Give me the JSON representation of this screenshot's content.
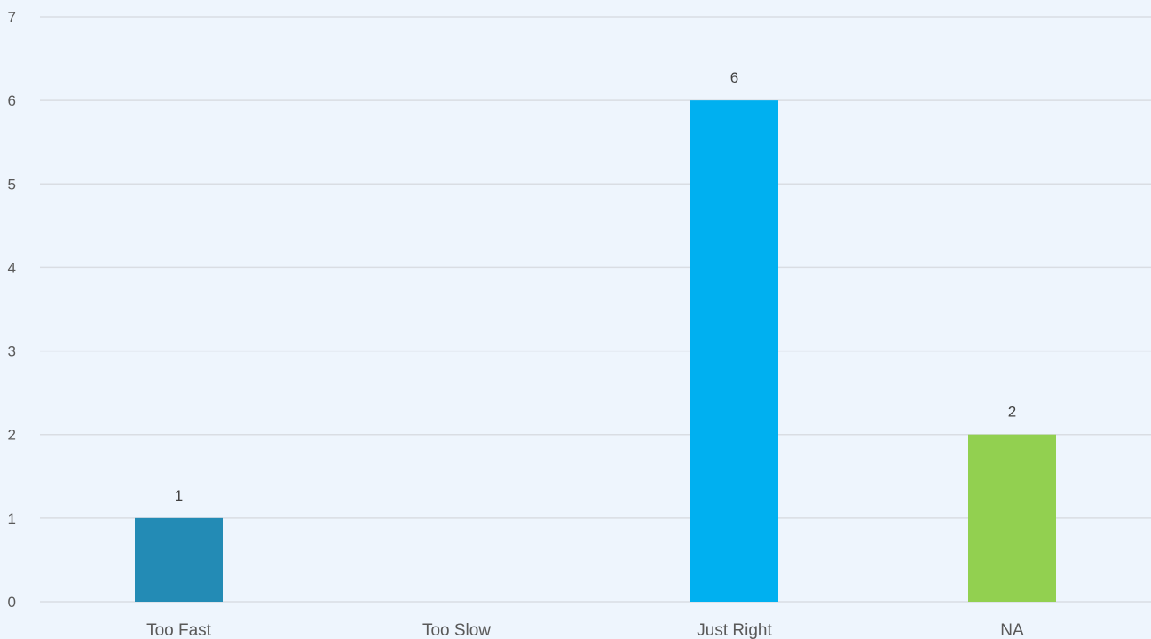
{
  "chart_data": {
    "type": "bar",
    "title": "",
    "xlabel": "",
    "ylabel": "",
    "categories": [
      "Too Fast",
      "Too Slow",
      "Just Right",
      "NA"
    ],
    "series": [
      {
        "values": [
          1,
          0,
          6,
          2
        ],
        "colors": [
          "#238bb5",
          "#238bb5",
          "#00b0f0",
          "#92d050"
        ]
      }
    ],
    "data_labels": [
      "1",
      "",
      "6",
      "2"
    ],
    "ylim": [
      0,
      7
    ],
    "yticks": [
      0,
      1,
      2,
      3,
      4,
      5,
      6,
      7
    ],
    "grid": true,
    "legend": "none",
    "colors": {
      "background": "#eef5fd",
      "gridline": "#d9dde3",
      "axis_text": "#595959"
    }
  }
}
